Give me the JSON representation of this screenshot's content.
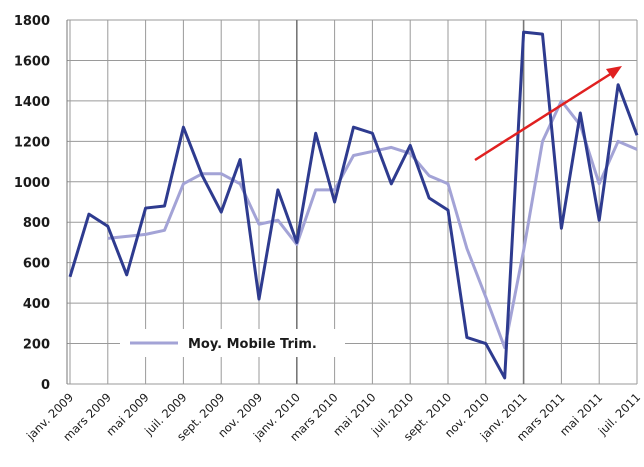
{
  "chart_data": {
    "type": "line",
    "categories": [
      "janv. 2009",
      null,
      "mars 2009",
      null,
      "mai 2009",
      null,
      "juil. 2009",
      null,
      "sept. 2009",
      null,
      "nov. 2009",
      null,
      "janv. 2010",
      null,
      "mars 2010",
      null,
      "mai 2010",
      null,
      "juil. 2010",
      null,
      "sept. 2010",
      null,
      "nov. 2010",
      null,
      "janv. 2011",
      null,
      "mars 2011",
      null,
      "mai 2011",
      null,
      "juil. 2011"
    ],
    "series": [
      {
        "color": "#2e3b8f",
        "values": [
          530,
          840,
          780,
          540,
          870,
          880,
          1270,
          1030,
          850,
          1110,
          420,
          960,
          700,
          1240,
          900,
          1270,
          1240,
          990,
          1180,
          920,
          860,
          230,
          200,
          30,
          1740,
          1730,
          770,
          1340,
          810,
          1480,
          1230
        ]
      },
      {
        "name": "Moy. Mobile Trim.",
        "color": "#a3a3d6",
        "values": [
          null,
          null,
          720,
          730,
          740,
          760,
          990,
          1040,
          1040,
          990,
          790,
          810,
          690,
          960,
          960,
          1130,
          1150,
          1170,
          1140,
          1030,
          990,
          670,
          430,
          180,
          660,
          1200,
          1400,
          1280,
          990,
          1200,
          1160
        ]
      }
    ],
    "ylim": [
      0,
      1800
    ],
    "yticks": [
      0,
      200,
      400,
      600,
      800,
      1000,
      1200,
      1400,
      1600,
      1800
    ],
    "grid": true
  }
}
